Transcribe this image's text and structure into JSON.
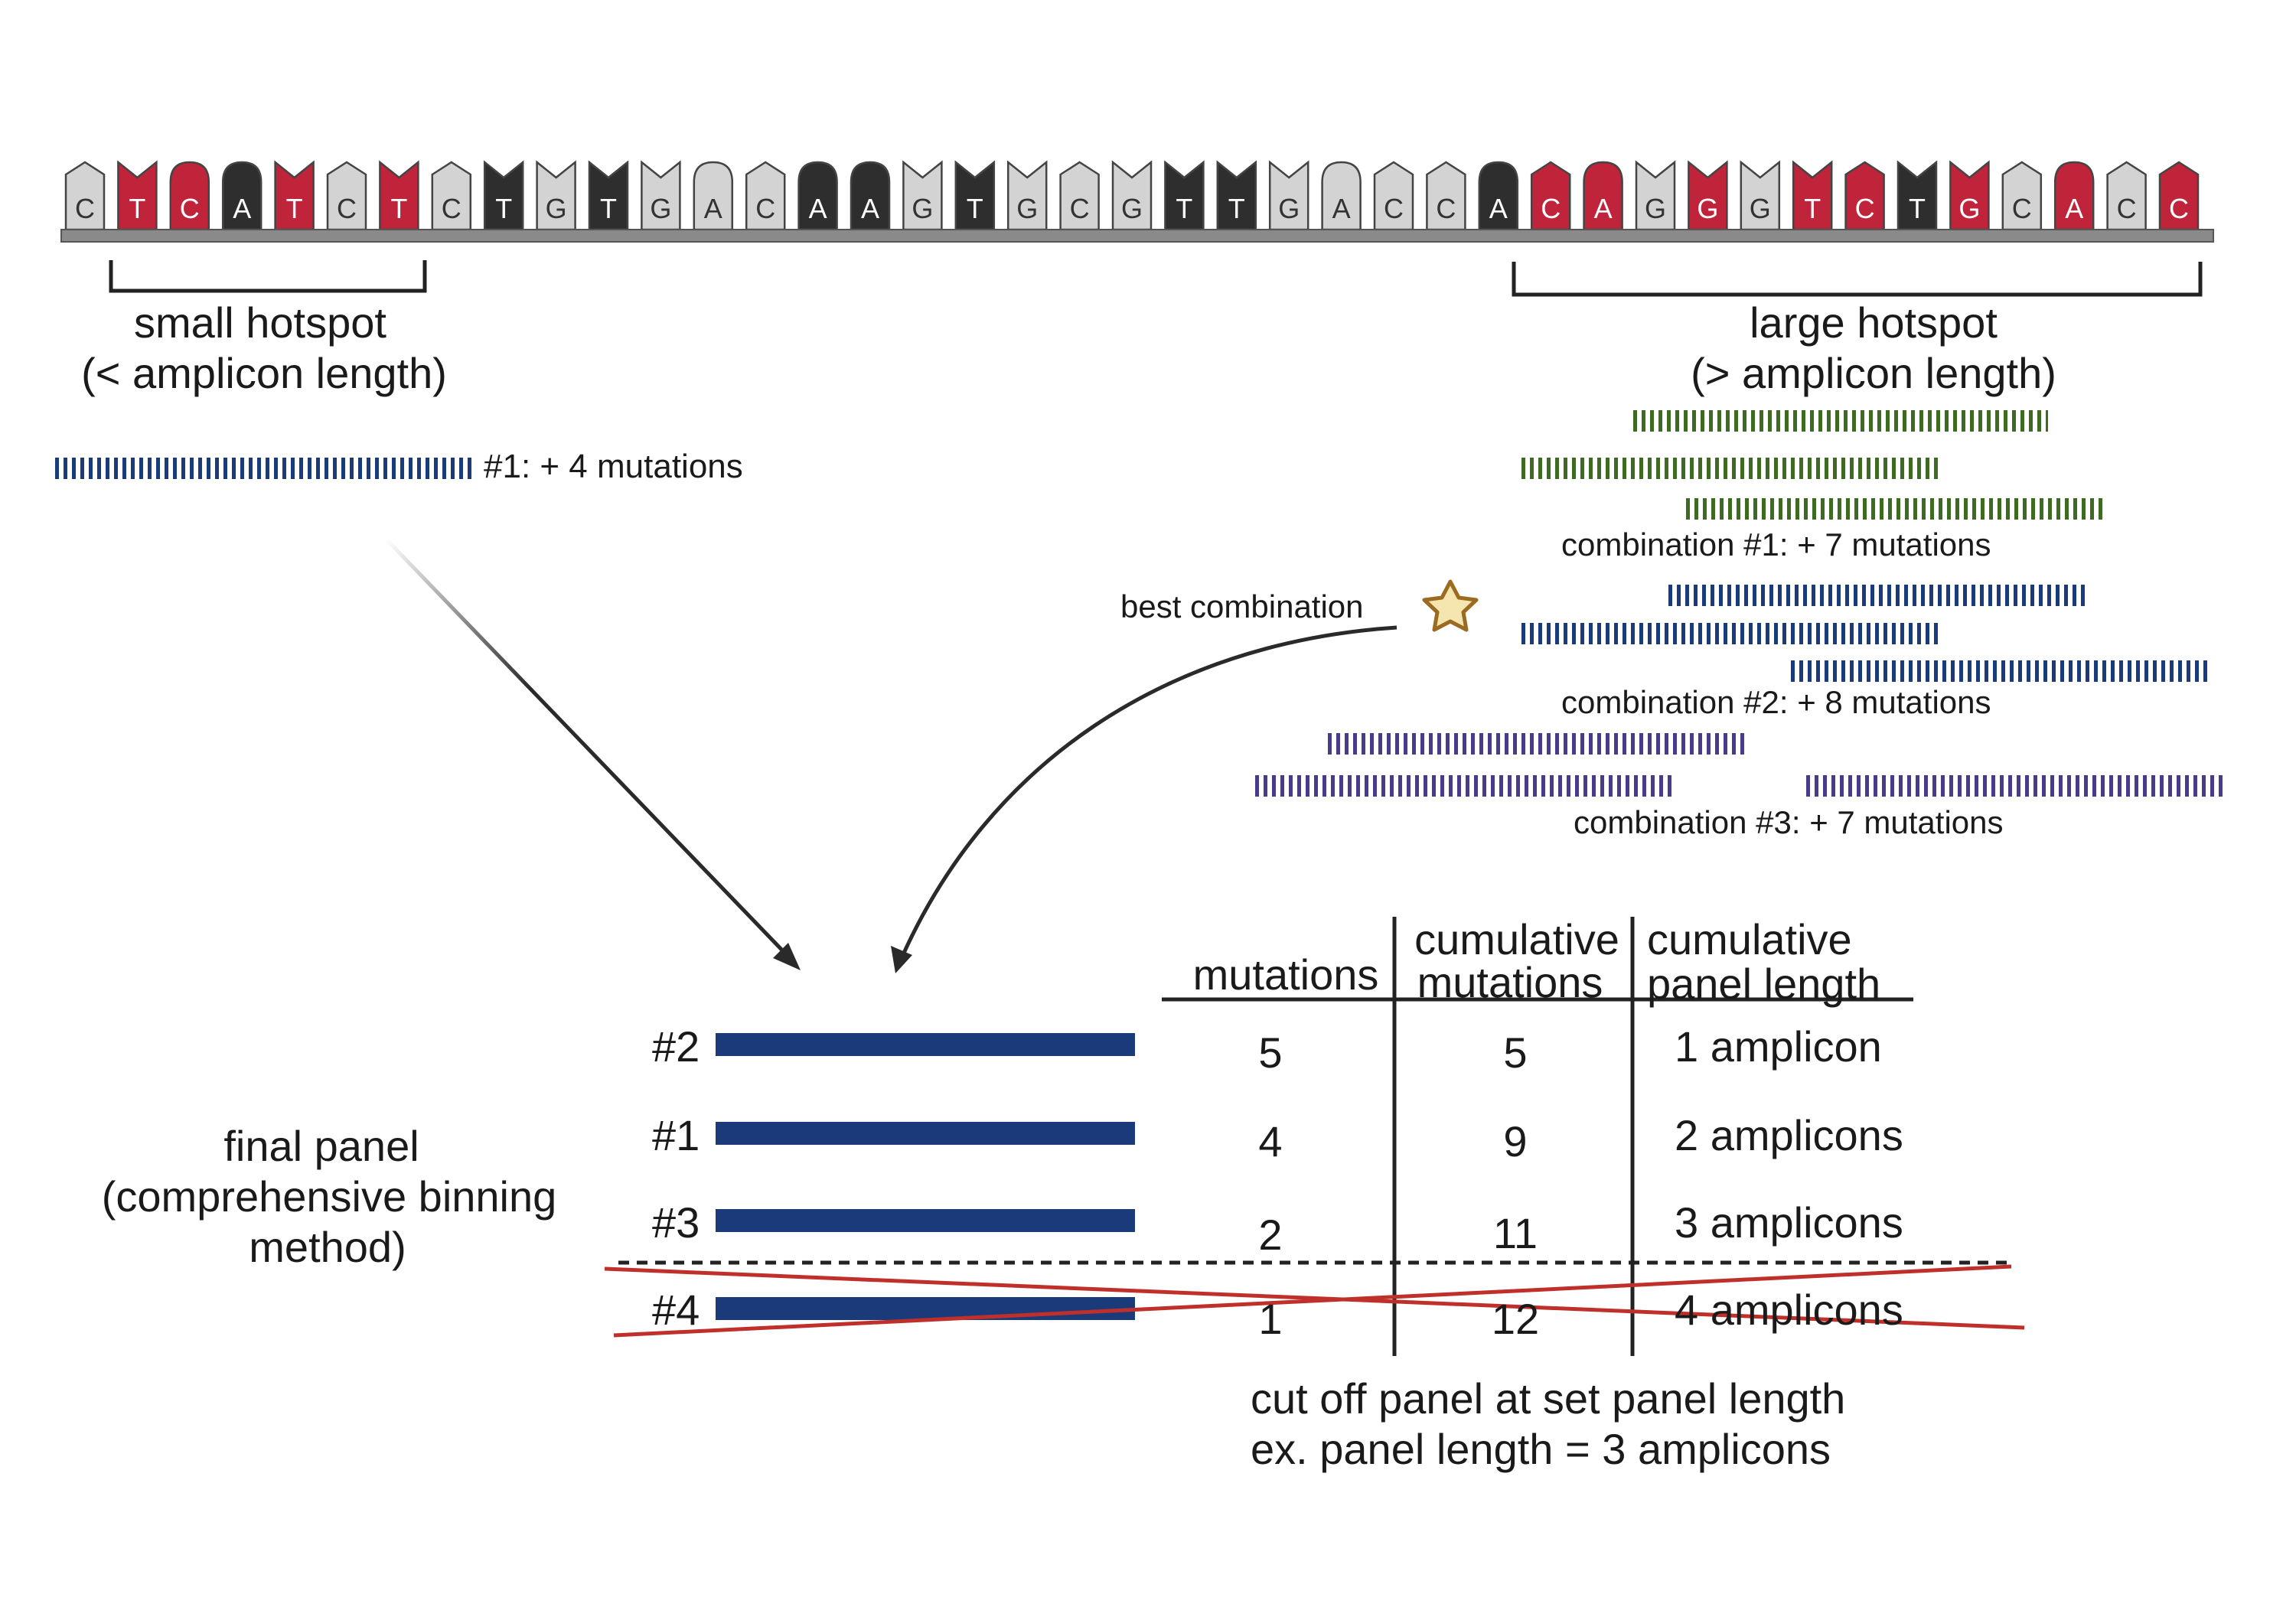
{
  "colors": {
    "base_gray": "#d3d3d3",
    "base_red": "#c0243a",
    "base_black": "#2e2e2e",
    "backbone": "#8a8a8a",
    "amplicon_blue": "#1b3a7a",
    "amplicon_green": "#3d6b22",
    "amplicon_purple": "#4a3a8c",
    "cross_red": "#c0302a",
    "star_fill": "#f5e6b0",
    "star_stroke": "#9a6b20"
  },
  "sequence": {
    "bases": [
      {
        "l": "C",
        "c": "gray",
        "s": "point"
      },
      {
        "l": "T",
        "c": "red",
        "s": "notch"
      },
      {
        "l": "C",
        "c": "red",
        "s": "round"
      },
      {
        "l": "A",
        "c": "black",
        "s": "round"
      },
      {
        "l": "T",
        "c": "red",
        "s": "notch"
      },
      {
        "l": "C",
        "c": "gray",
        "s": "point"
      },
      {
        "l": "T",
        "c": "red",
        "s": "notch"
      },
      {
        "l": "C",
        "c": "gray",
        "s": "point"
      },
      {
        "l": "T",
        "c": "black",
        "s": "notch"
      },
      {
        "l": "G",
        "c": "gray",
        "s": "notch"
      },
      {
        "l": "T",
        "c": "black",
        "s": "notch"
      },
      {
        "l": "G",
        "c": "gray",
        "s": "notch"
      },
      {
        "l": "A",
        "c": "gray",
        "s": "round"
      },
      {
        "l": "C",
        "c": "gray",
        "s": "point"
      },
      {
        "l": "A",
        "c": "black",
        "s": "round"
      },
      {
        "l": "A",
        "c": "black",
        "s": "round"
      },
      {
        "l": "G",
        "c": "gray",
        "s": "notch"
      },
      {
        "l": "T",
        "c": "black",
        "s": "notch"
      },
      {
        "l": "G",
        "c": "gray",
        "s": "notch"
      },
      {
        "l": "C",
        "c": "gray",
        "s": "point"
      },
      {
        "l": "G",
        "c": "gray",
        "s": "notch"
      },
      {
        "l": "T",
        "c": "black",
        "s": "notch"
      },
      {
        "l": "T",
        "c": "black",
        "s": "notch"
      },
      {
        "l": "G",
        "c": "gray",
        "s": "notch"
      },
      {
        "l": "A",
        "c": "gray",
        "s": "round"
      },
      {
        "l": "C",
        "c": "gray",
        "s": "point"
      },
      {
        "l": "C",
        "c": "gray",
        "s": "point"
      },
      {
        "l": "A",
        "c": "black",
        "s": "round"
      },
      {
        "l": "C",
        "c": "red",
        "s": "point"
      },
      {
        "l": "A",
        "c": "red",
        "s": "round"
      },
      {
        "l": "G",
        "c": "gray",
        "s": "notch"
      },
      {
        "l": "G",
        "c": "red",
        "s": "notch"
      },
      {
        "l": "G",
        "c": "gray",
        "s": "notch"
      },
      {
        "l": "T",
        "c": "red",
        "s": "notch"
      },
      {
        "l": "C",
        "c": "red",
        "s": "point"
      },
      {
        "l": "T",
        "c": "black",
        "s": "notch"
      },
      {
        "l": "G",
        "c": "red",
        "s": "notch"
      },
      {
        "l": "C",
        "c": "gray",
        "s": "point"
      },
      {
        "l": "A",
        "c": "red",
        "s": "round"
      },
      {
        "l": "C",
        "c": "gray",
        "s": "point"
      },
      {
        "l": "C",
        "c": "red",
        "s": "point"
      }
    ]
  },
  "small_hotspot": {
    "label_line1": "small hotspot",
    "label_line2": "(< amplicon length)",
    "amplicon_label": "#1: + 4 mutations"
  },
  "large_hotspot": {
    "label_line1": "large hotspot",
    "label_line2": "(> amplicon length)",
    "combination_1": "combination #1: + 7 mutations",
    "combination_2": "combination #2: + 8 mutations",
    "combination_3": "combination #3: + 7 mutations",
    "best_label": "best combination",
    "best_icon": "star-icon"
  },
  "final_panel": {
    "label_line1": "final panel",
    "label_line2": "(comprehensive binning",
    "label_line3": "method)",
    "headers": {
      "mutations": "mutations",
      "cumulative_mutations_1": "cumulative",
      "cumulative_mutations_2": "mutations",
      "cumulative_length_1": "cumulative",
      "cumulative_length_2": "panel length"
    },
    "rows": [
      {
        "id": "#2",
        "mutations": "5",
        "cumulative": "5",
        "length": "1 amplicon"
      },
      {
        "id": "#1",
        "mutations": "4",
        "cumulative": "9",
        "length": "2 amplicons"
      },
      {
        "id": "#3",
        "mutations": "2",
        "cumulative": "11",
        "length": "3 amplicons"
      },
      {
        "id": "#4",
        "mutations": "1",
        "cumulative": "12",
        "length": "4 amplicons"
      }
    ],
    "cutoff_line1": "cut off panel at set panel length",
    "cutoff_line2": "ex. panel length = 3 amplicons"
  }
}
